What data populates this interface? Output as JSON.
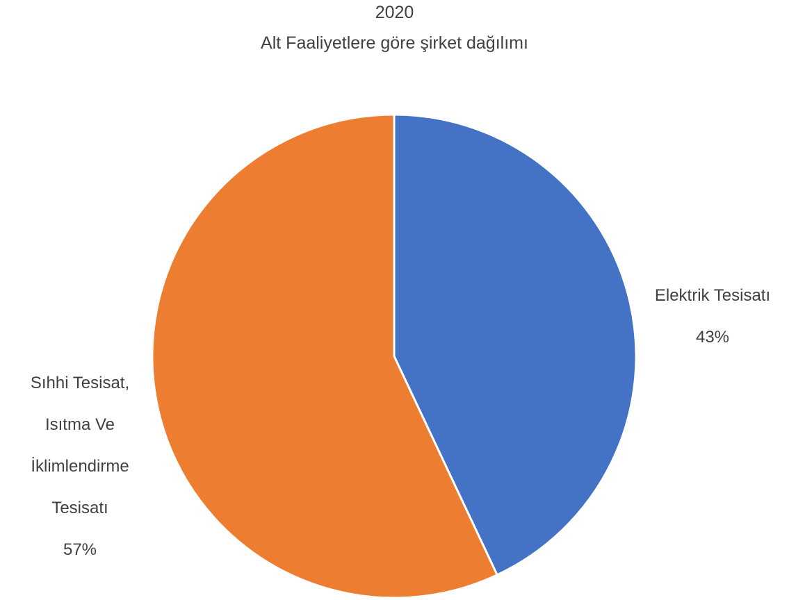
{
  "chart_data": {
    "type": "pie",
    "title": "2020",
    "subtitle": "Alt Faaliyetlere göre şirket dağılımı",
    "categories": [
      "Elektrik Tesisatı",
      "Sıhhi Tesisat, Isıtma Ve İklimlendirme Tesisatı"
    ],
    "values": [
      43,
      57
    ],
    "percent_labels": [
      "43%",
      "57%"
    ],
    "label_lines": [
      [
        "Elektrik Tesisatı"
      ],
      [
        "Sıhhi Tesisat,",
        "Isıtma Ve",
        "İklimlendirme",
        "Tesisatı"
      ]
    ],
    "colors": [
      "#4472C4",
      "#ED7D31"
    ],
    "start_angle_deg": 0,
    "direction": "clockwise",
    "legend": "none"
  }
}
